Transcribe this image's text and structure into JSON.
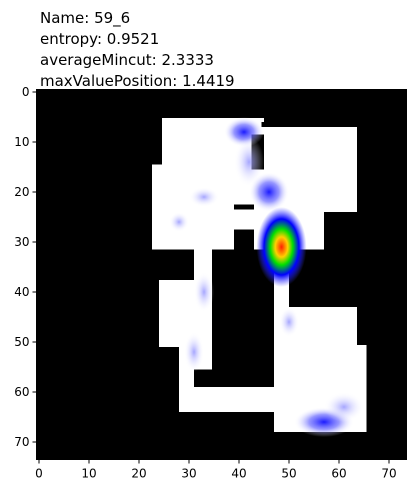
{
  "chart_data": {
    "type": "heatmap",
    "title": [
      "Name: 59_6",
      " entropy: 0.9521",
      "averageMincut: 2.3333",
      "maxValuePosition: 1.4419"
    ],
    "xlim": [
      -0.5,
      73.5
    ],
    "ylim": [
      73.5,
      -0.5
    ],
    "xticks": [
      0,
      10,
      20,
      30,
      40,
      50,
      60,
      70
    ],
    "yticks": [
      0,
      10,
      20,
      30,
      40,
      50,
      60,
      70
    ]
  }
}
